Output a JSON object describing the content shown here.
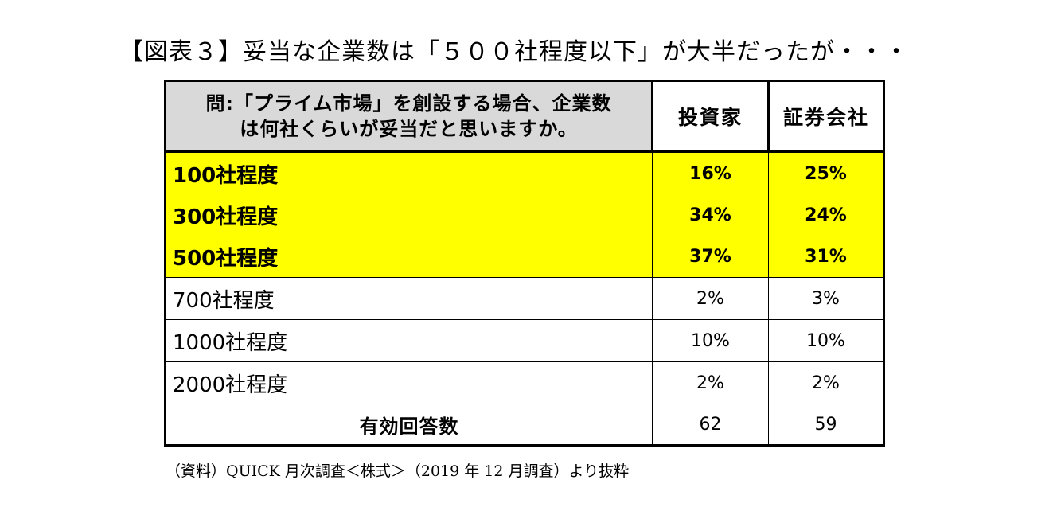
{
  "title": "【図表３】妥当な企業数は「５００社程度以下」が大半だったが・・・",
  "colors": {
    "highlight": "#ffff00",
    "header_background": "#d9d9d9",
    "border": "#000000"
  },
  "chart_data": {
    "type": "table",
    "title": "【図表３】妥当な企業数は「５００社程度以下」が大半だったが・・・",
    "question_line1": "問:「プライム市場」を創設する場合、企業数",
    "question_line2": "は何社くらいが妥当だと思いますか。",
    "columns": [
      "投資家",
      "証券会社"
    ],
    "rows": [
      {
        "label": "100社程度",
        "investors": "16%",
        "securities": "25%",
        "highlighted": true
      },
      {
        "label": "300社程度",
        "investors": "34%",
        "securities": "24%",
        "highlighted": true
      },
      {
        "label": "500社程度",
        "investors": "37%",
        "securities": "31%",
        "highlighted": true
      },
      {
        "label": "700社程度",
        "investors": "2%",
        "securities": "3%",
        "highlighted": false
      },
      {
        "label": "1000社程度",
        "investors": "10%",
        "securities": "10%",
        "highlighted": false
      },
      {
        "label": "2000社程度",
        "investors": "2%",
        "securities": "2%",
        "highlighted": false
      }
    ],
    "total": {
      "label": "有効回答数",
      "investors": "62",
      "securities": "59"
    },
    "source": "（資料）QUICK 月次調査＜株式＞（2019 年 12 月調査）より抜粋"
  }
}
